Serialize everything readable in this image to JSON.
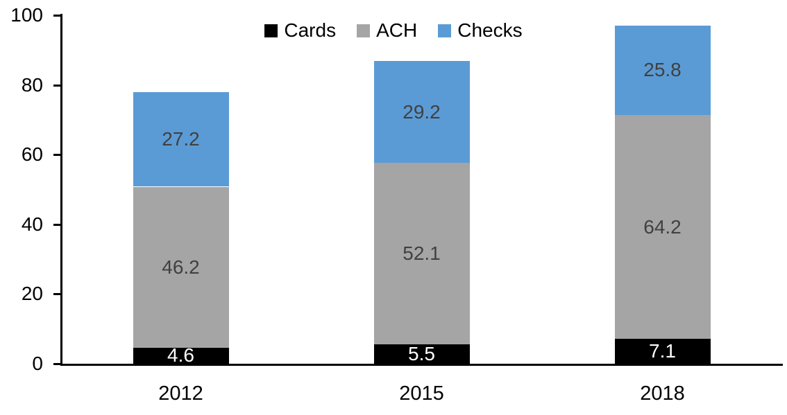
{
  "chart_data": {
    "type": "bar",
    "stacked": true,
    "title": "",
    "xlabel": "",
    "ylabel": "",
    "categories": [
      "2012",
      "2015",
      "2018"
    ],
    "series": [
      {
        "name": "Cards",
        "values": [
          4.6,
          5.5,
          7.1
        ],
        "color": "#000000",
        "label_color": "#FFFFFF"
      },
      {
        "name": "ACH",
        "values": [
          46.2,
          52.1,
          64.2
        ],
        "color": "#A5A5A5",
        "label_color": "#404040"
      },
      {
        "name": "Checks",
        "values": [
          27.2,
          29.2,
          25.8
        ],
        "color": "#5B9BD5",
        "label_color": "#404040"
      }
    ],
    "totals": [
      78.0,
      86.8,
      97.1
    ],
    "ylim": [
      0,
      100
    ],
    "yticks": [
      0,
      20,
      40,
      60,
      80,
      100
    ],
    "grid": false,
    "legend_position": "top",
    "legend_labels": [
      "Cards",
      "ACH",
      "Checks"
    ],
    "axis_color": "#000000",
    "background_color": "#FFFFFF"
  }
}
